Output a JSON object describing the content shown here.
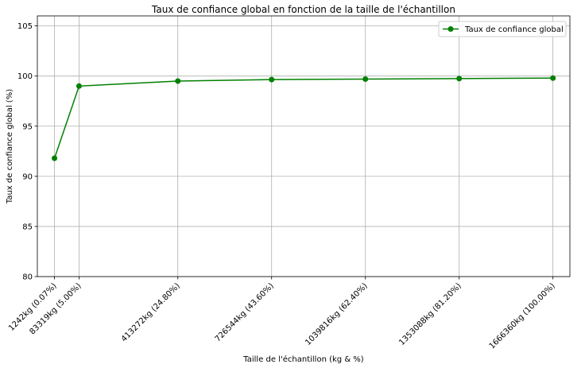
{
  "chart_data": {
    "type": "line",
    "title": "Taux de confiance global en fonction de la taille de l'échantillon",
    "xlabel": "Taille de l'échantillon (kg & %)",
    "ylabel": "Taux de confiance global (%)",
    "x": [
      1242,
      83319,
      413272,
      726544,
      1039816,
      1353088,
      1666360
    ],
    "categories": [
      "1242kg (0.07%)",
      "83319kg (5.00%)",
      "413272kg (24.80%)",
      "726544kg (43.60%)",
      "1039816kg (62.40%)",
      "1353088kg (81.20%)",
      "1666360kg (100.00%)"
    ],
    "series": [
      {
        "name": "Taux de confiance global",
        "values": [
          91.8,
          99.0,
          99.5,
          99.65,
          99.7,
          99.75,
          99.8
        ],
        "color": "#008000",
        "marker": "circle"
      }
    ],
    "ylim": [
      80,
      106
    ],
    "yticks": [
      80,
      85,
      90,
      95,
      100,
      105
    ],
    "grid": true,
    "legend_position": "top-right"
  }
}
